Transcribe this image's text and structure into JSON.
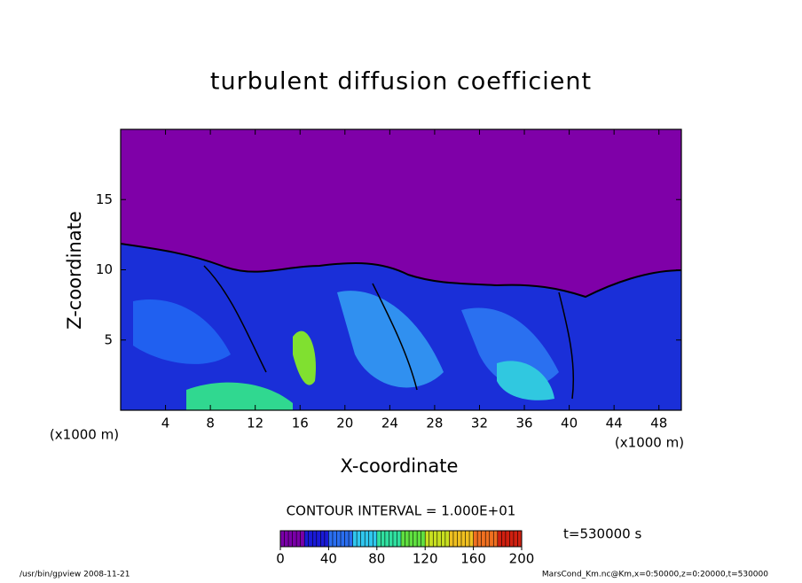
{
  "chart_data": {
    "type": "contour",
    "title": "turbulent diffusion coefficient",
    "x_label": "X-coordinate",
    "y_label": "Z-coordinate",
    "x_unit": "(x1000 m)",
    "y_unit": "(x1000 m)",
    "xlim": [
      0,
      50
    ],
    "xticks": [
      4,
      8,
      12,
      16,
      20,
      24,
      28,
      32,
      36,
      40,
      44,
      48
    ],
    "ylim": [
      0,
      20
    ],
    "yticks": [
      5,
      10,
      15
    ],
    "contour_interval": "CONTOUR INTERVAL = 1.000E+01",
    "time_label": "t=530000 s",
    "colorbar": {
      "lim": [
        0,
        200
      ],
      "ticks": [
        0,
        40,
        80,
        120,
        160,
        200
      ],
      "colors": [
        "#7a00a8",
        "#1a1ad8",
        "#2a6ef0",
        "#30c8f0",
        "#30e0a0",
        "#60e040",
        "#c8e020",
        "#f0c020",
        "#f07020",
        "#d02010"
      ]
    },
    "footer_left": "/usr/bin/gpview  2008-11-21",
    "footer_right": "MarsCond_Km.nc@Km,x=0:50000,z=0:20000,t=530000"
  }
}
